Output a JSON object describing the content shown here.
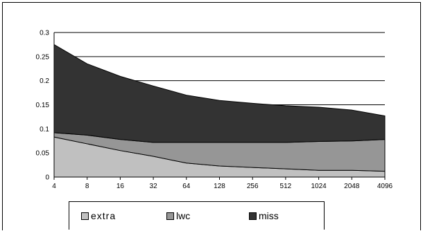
{
  "chart_data": {
    "type": "area",
    "stacked": true,
    "categories": [
      "4",
      "8",
      "16",
      "32",
      "64",
      "128",
      "256",
      "512",
      "1024",
      "2048",
      "4096"
    ],
    "series": [
      {
        "name": "extra",
        "color": "#c0c0c0",
        "values": [
          0.083,
          0.069,
          0.055,
          0.043,
          0.029,
          0.023,
          0.02,
          0.017,
          0.014,
          0.014,
          0.012
        ]
      },
      {
        "name": "lwc",
        "color": "#969696",
        "values": [
          0.009,
          0.018,
          0.023,
          0.029,
          0.043,
          0.049,
          0.052,
          0.055,
          0.06,
          0.061,
          0.066
        ]
      },
      {
        "name": "miss",
        "color": "#333333",
        "values": [
          0.183,
          0.148,
          0.131,
          0.117,
          0.098,
          0.087,
          0.081,
          0.076,
          0.071,
          0.064,
          0.049
        ]
      }
    ],
    "ylim": [
      0,
      0.3
    ],
    "yticks": [
      "0",
      "0.05",
      "0.1",
      "0.15",
      "0.2",
      "0.25",
      "0.3"
    ],
    "grid": true,
    "legend_position": "bottom"
  }
}
